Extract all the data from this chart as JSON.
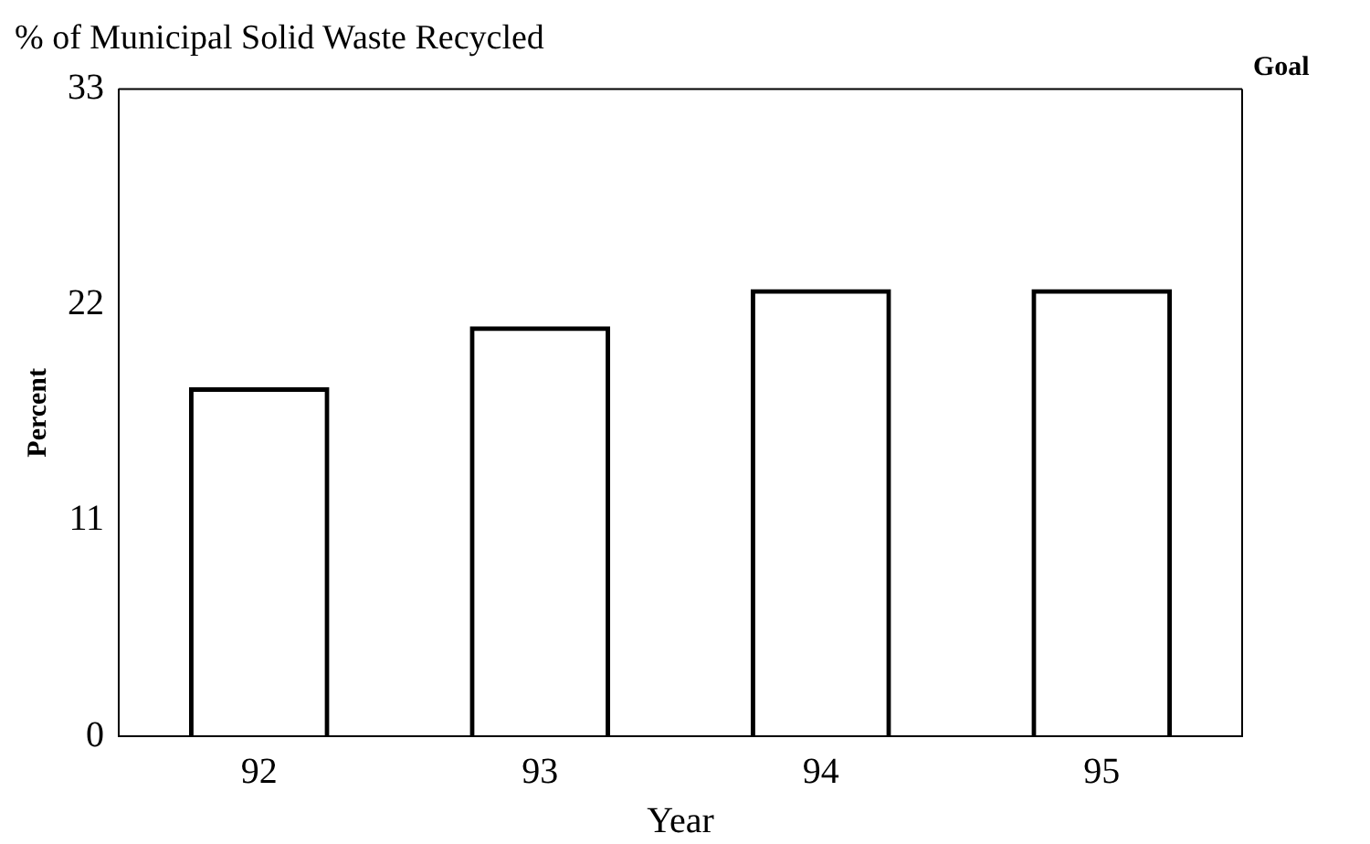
{
  "chart_data": {
    "type": "bar",
    "title": "% of Municipal Solid Waste Recycled",
    "xlabel": "Year",
    "ylabel": "Percent",
    "categories": [
      "92",
      "93",
      "94",
      "95"
    ],
    "values": [
      17.8,
      20.9,
      22.8,
      22.8
    ],
    "color": "#000000",
    "ylim": [
      0,
      33
    ],
    "yticks": [
      0,
      11,
      22,
      33
    ],
    "grid": false,
    "legend": false,
    "ref_lines": [
      {
        "axis": "y",
        "value": 33,
        "label": "Goal",
        "color": "#000000"
      }
    ]
  }
}
